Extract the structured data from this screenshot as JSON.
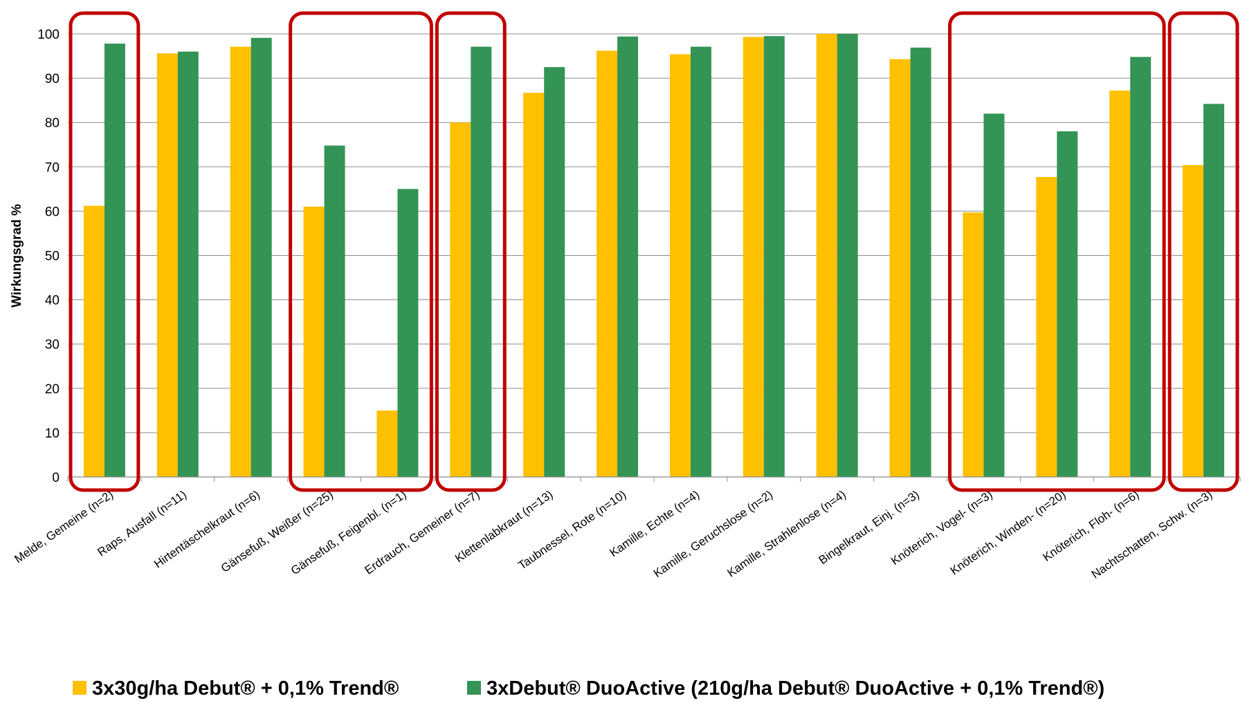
{
  "chart_data": {
    "type": "bar",
    "title": "",
    "xlabel": "",
    "ylabel": "Wirkungsgrad %",
    "ylim": [
      0,
      100
    ],
    "yticks": [
      0,
      10,
      20,
      30,
      40,
      50,
      60,
      70,
      80,
      90,
      100
    ],
    "grid": true,
    "legend_position": "bottom",
    "categories": [
      "Melde, Gemeine (n=2)",
      "Raps, Ausfall (n=11)",
      "Hirtentäschelkraut (n=6)",
      "Gänsefuß, Weißer (n=25)",
      "Gänsefuß, Feigenbl. (n=1)",
      "Erdrauch, Gemeiner (n=7)",
      "Klettenlabkraut (n=13)",
      "Taubnessel, Rote (n=10)",
      "Kamille, Echte (n=4)",
      "Kamille, Geruchslose (n=2)",
      "Kamille, Strahlenlose (n=4)",
      "Bingelkraut, Einj. (n=3)",
      "Knöterich, Vogel- (n=3)",
      "Knöterich, Winden- (n=20)",
      "Knöterich, Floh- (n=6)",
      "Nachtschatten, Schw. (n=3)"
    ],
    "series": [
      {
        "name": "3x30g/ha Debut® + 0,1% Trend®",
        "color": "#ffc000",
        "values": [
          61.2,
          95.6,
          97.1,
          61.0,
          15.0,
          80.0,
          86.7,
          96.2,
          95.4,
          99.3,
          100,
          94.3,
          59.7,
          67.7,
          87.2,
          70.4
        ]
      },
      {
        "name": "3xDebut® DuoActive (210g/ha Debut® DuoActive + 0,1% Trend®)",
        "color": "#339455",
        "values": [
          97.8,
          96.0,
          99.1,
          74.8,
          65.0,
          97.1,
          92.5,
          99.4,
          97.1,
          99.5,
          100,
          96.9,
          82.0,
          78.0,
          94.8,
          84.2
        ]
      }
    ],
    "highlight_groups": [
      [
        0,
        0
      ],
      [
        3,
        4
      ],
      [
        5,
        5
      ],
      [
        12,
        14
      ],
      [
        15,
        15
      ]
    ],
    "highlight_color": "#c00000"
  }
}
